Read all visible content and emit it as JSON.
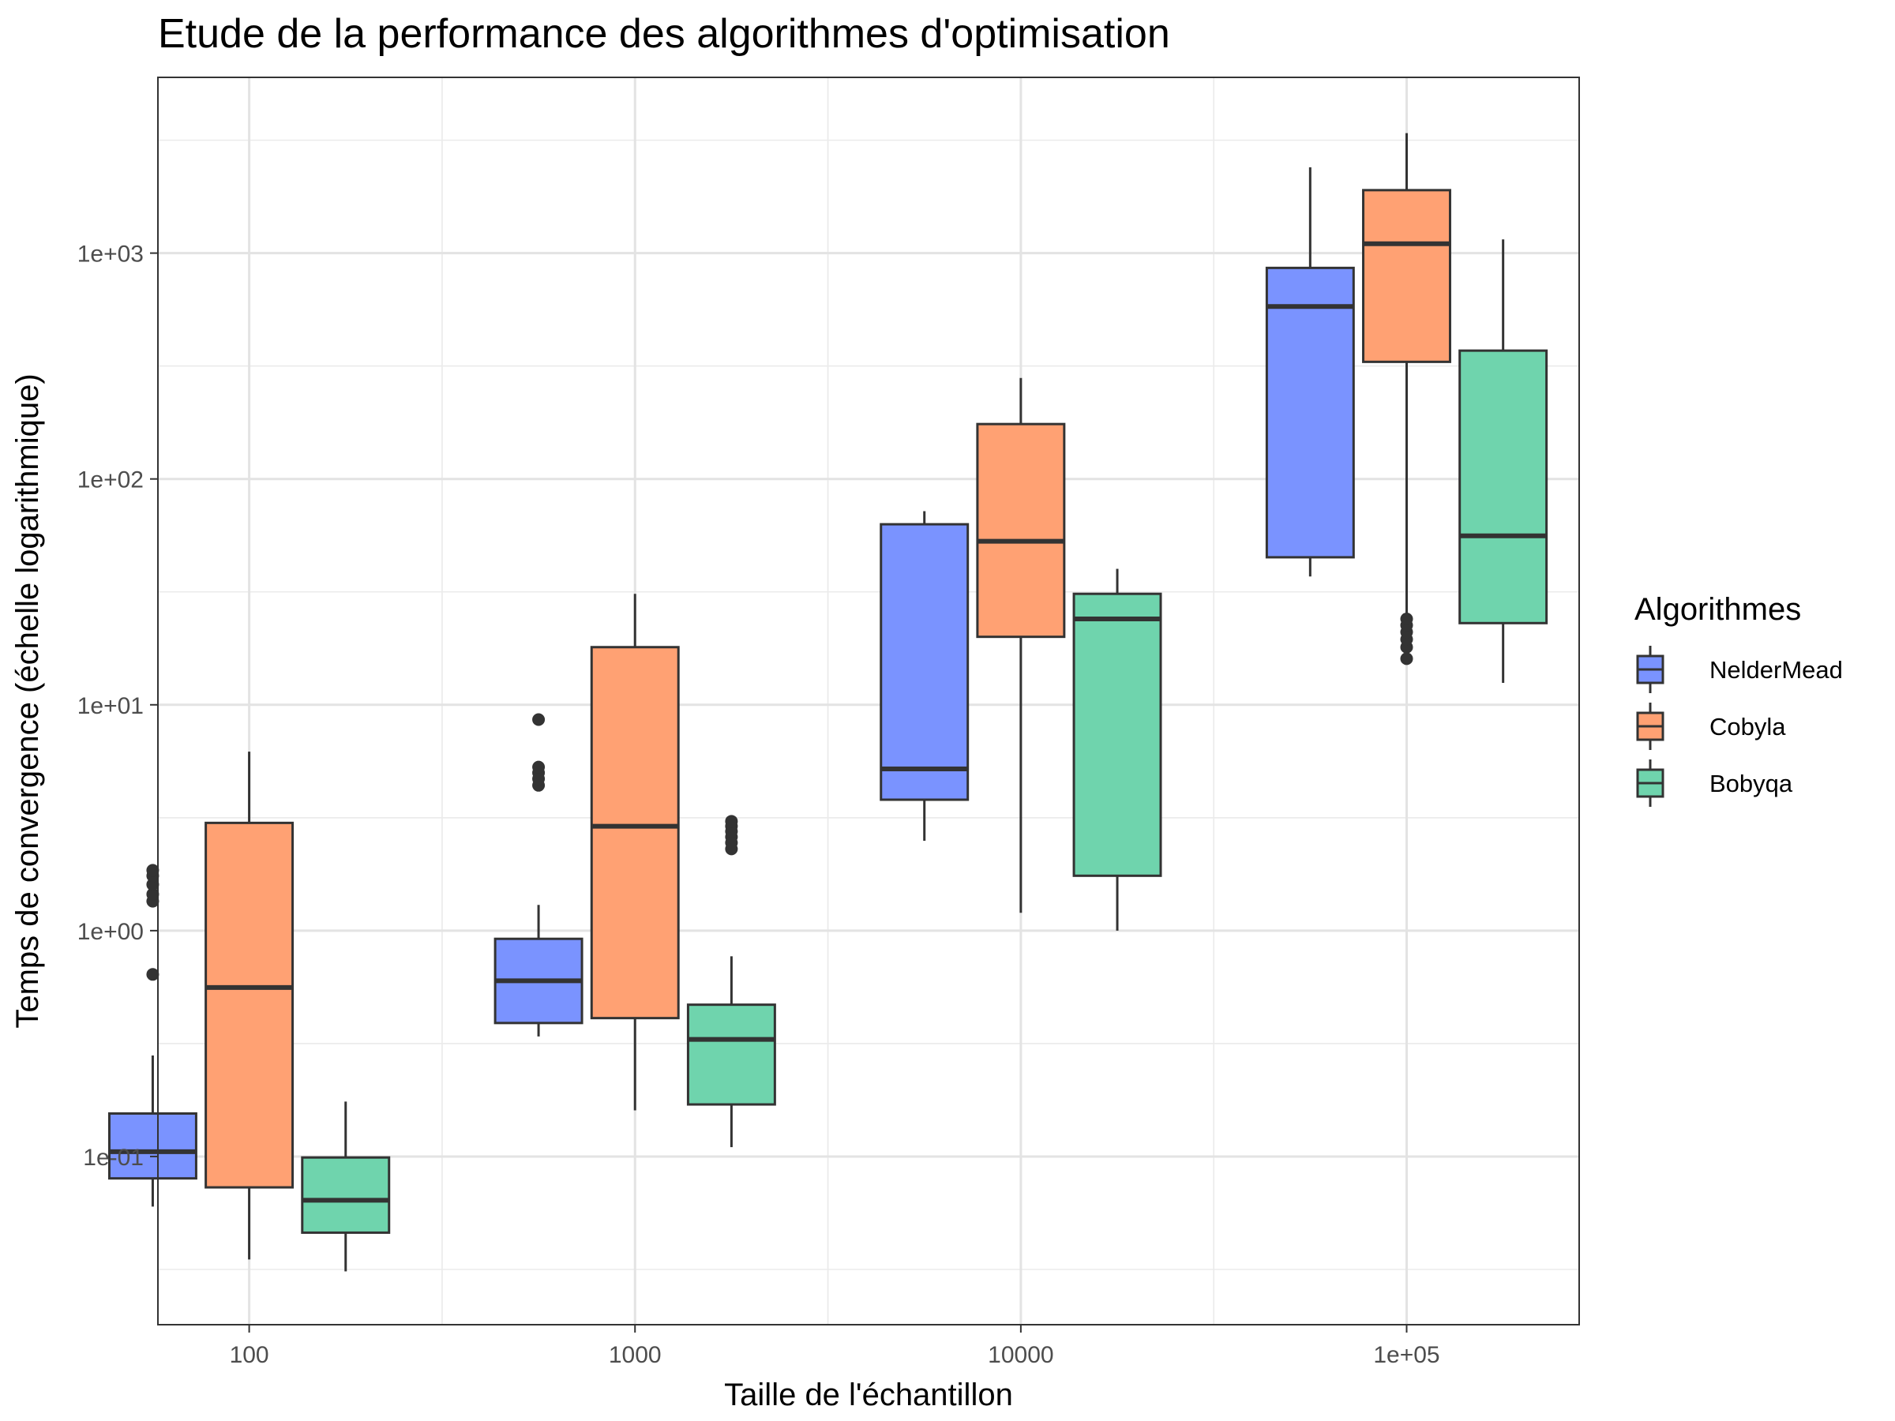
{
  "chart_data": {
    "type": "box",
    "title": "Etude de la performance des algorithmes d'optimisation",
    "xlabel": "Taille de l'échantillon",
    "ylabel": "Temps de convergence (échelle logarithmique)",
    "x_scale": "log10",
    "y_scale": "log10",
    "xlim": [
      58,
      280000
    ],
    "ylim": [
      0.018,
      6000
    ],
    "x_ticks": [
      100,
      1000,
      10000,
      100000
    ],
    "x_tick_labels": [
      "100",
      "1000",
      "10000",
      "1e+05"
    ],
    "y_ticks": [
      0.1,
      1,
      10,
      100,
      1000
    ],
    "y_tick_labels": [
      "1e-01",
      "1e+00",
      "1e+01",
      "1e+02",
      "1e+03"
    ],
    "grid": true,
    "legend": {
      "title": "Algorithmes",
      "position": "right"
    },
    "categories": [
      100,
      1000,
      10000,
      100000
    ],
    "series": [
      {
        "name": "NelderMead",
        "color": "#7a93ff",
        "boxes": [
          {
            "x": 100,
            "whisker_low": 0.06,
            "q1": 0.08,
            "median": 0.105,
            "q3": 0.155,
            "whisker_high": 0.28,
            "outliers": [
              0.64,
              1.35,
              1.45,
              1.6,
              1.75,
              1.85
            ]
          },
          {
            "x": 1000,
            "whisker_low": 0.34,
            "q1": 0.39,
            "median": 0.6,
            "q3": 0.92,
            "whisker_high": 1.3,
            "outliers": [
              4.4,
              4.7,
              5.0,
              5.3,
              8.6
            ]
          },
          {
            "x": 10000,
            "whisker_low": 2.5,
            "q1": 3.8,
            "median": 5.2,
            "q3": 63,
            "whisker_high": 72,
            "outliers": []
          },
          {
            "x": 100000,
            "whisker_low": 37,
            "q1": 45,
            "median": 580,
            "q3": 860,
            "whisker_high": 2400,
            "outliers": []
          }
        ]
      },
      {
        "name": "Cobyla",
        "color": "#ffa173",
        "boxes": [
          {
            "x": 100,
            "whisker_low": 0.035,
            "q1": 0.073,
            "median": 0.56,
            "q3": 3.0,
            "whisker_high": 6.2,
            "outliers": []
          },
          {
            "x": 1000,
            "whisker_low": 0.16,
            "q1": 0.41,
            "median": 2.9,
            "q3": 18,
            "whisker_high": 31,
            "outliers": []
          },
          {
            "x": 10000,
            "whisker_low": 1.2,
            "q1": 20,
            "median": 53,
            "q3": 175,
            "whisker_high": 280,
            "outliers": []
          },
          {
            "x": 100000,
            "whisker_low": 16,
            "q1": 330,
            "median": 1100,
            "q3": 1900,
            "whisker_high": 3400,
            "outliers": [
              16,
              18,
              19.5,
              21,
              22.5,
              24
            ]
          }
        ]
      },
      {
        "name": "Bobyqa",
        "color": "#6fd4ad",
        "boxes": [
          {
            "x": 100,
            "whisker_low": 0.031,
            "q1": 0.046,
            "median": 0.064,
            "q3": 0.099,
            "whisker_high": 0.175,
            "outliers": []
          },
          {
            "x": 1000,
            "whisker_low": 0.11,
            "q1": 0.17,
            "median": 0.33,
            "q3": 0.47,
            "whisker_high": 0.77,
            "outliers": [
              2.3,
              2.45,
              2.6,
              2.75,
              2.9,
              3.05
            ]
          },
          {
            "x": 10000,
            "whisker_low": 1.0,
            "q1": 1.75,
            "median": 24,
            "q3": 31,
            "whisker_high": 40,
            "outliers": []
          },
          {
            "x": 100000,
            "whisker_low": 12.5,
            "q1": 23,
            "median": 56,
            "q3": 370,
            "whisker_high": 1150,
            "outliers": []
          }
        ]
      }
    ]
  }
}
